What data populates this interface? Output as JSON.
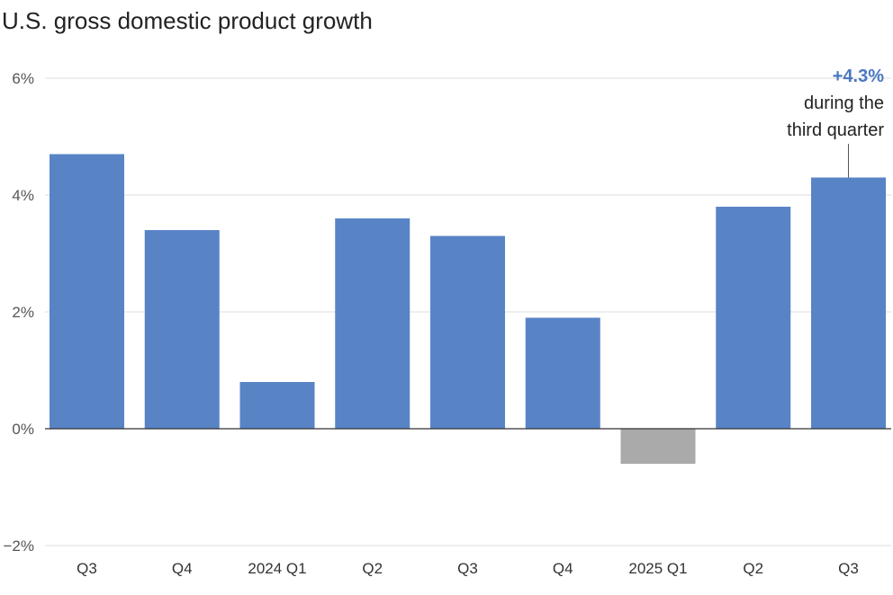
{
  "chart_data": {
    "type": "bar",
    "title": "U.S. gross domestic product growth",
    "xlabel": "",
    "ylabel": "",
    "ylim": [
      -2,
      6
    ],
    "yticks": [
      {
        "value": 6,
        "label": "6%"
      },
      {
        "value": 4,
        "label": "4%"
      },
      {
        "value": 2,
        "label": "2%"
      },
      {
        "value": 0,
        "label": "0%"
      },
      {
        "value": -2,
        "label": "−2%"
      }
    ],
    "categories": [
      "Q3",
      "Q4",
      "2024 Q1",
      "Q2",
      "Q3",
      "Q4",
      "2025 Q1",
      "Q2",
      "Q3"
    ],
    "values": [
      4.7,
      3.4,
      0.8,
      3.6,
      3.3,
      1.9,
      -0.6,
      3.8,
      4.3
    ],
    "grid": true,
    "colors": {
      "positive": "#5884C6",
      "negative": "#AAAAAA",
      "accent": "#4A77C0",
      "gridline": "#DDDDDD",
      "baseline": "#333333"
    },
    "annotation": {
      "category_index": 8,
      "value_label": "+4.3%",
      "text_lines": [
        "during the",
        "third quarter"
      ]
    }
  }
}
